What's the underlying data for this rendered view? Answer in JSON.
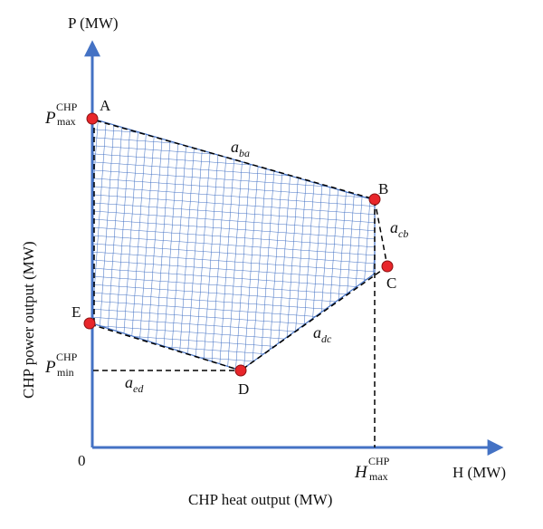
{
  "axes": {
    "y_label": "P (MW)",
    "x_label": "H (MW)",
    "origin": "0",
    "y_title": "CHP power output (MW)",
    "x_title": "CHP heat output (MW)"
  },
  "ticks": {
    "p_max": {
      "base": "P",
      "sup": "CHP",
      "sub": "max"
    },
    "p_min": {
      "base": "P",
      "sup": "CHP",
      "sub": "min"
    },
    "h_max": {
      "base": "H",
      "sup": "CHP",
      "sub": "max"
    }
  },
  "points": [
    {
      "name": "A"
    },
    {
      "name": "B"
    },
    {
      "name": "C"
    },
    {
      "name": "D"
    },
    {
      "name": "E"
    }
  ],
  "edges": {
    "ba": {
      "base": "a",
      "sub": "ba"
    },
    "cb": {
      "base": "a",
      "sub": "cb"
    },
    "dc": {
      "base": "a",
      "sub": "dc"
    },
    "ed": {
      "base": "a",
      "sub": "ed"
    }
  },
  "colors": {
    "axis": "#4472c4",
    "hatch": "#4472c4",
    "point": "#e8262b",
    "outline": "#000000"
  }
}
